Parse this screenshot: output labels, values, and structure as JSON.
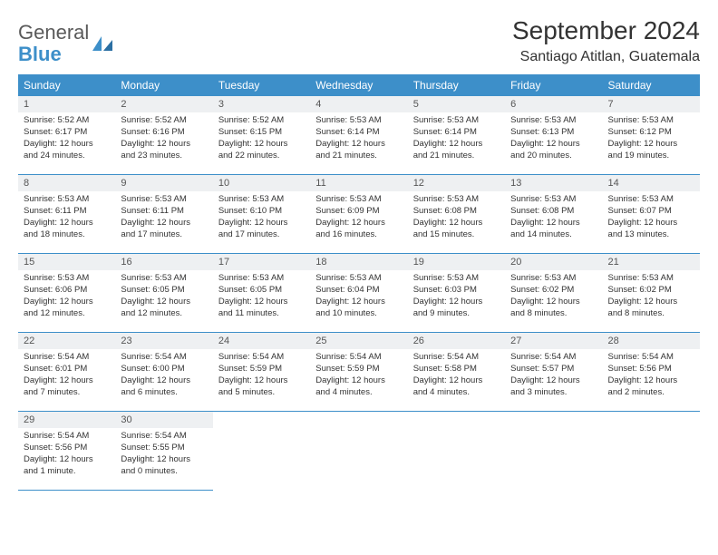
{
  "logo": {
    "text1": "General",
    "text2": "Blue"
  },
  "title": "September 2024",
  "location": "Santiago Atitlan, Guatemala",
  "colors": {
    "header_bg": "#3d8fc9",
    "header_text": "#ffffff",
    "daynum_bg": "#eef0f2",
    "border": "#3d8fc9"
  },
  "weekdays": [
    "Sunday",
    "Monday",
    "Tuesday",
    "Wednesday",
    "Thursday",
    "Friday",
    "Saturday"
  ],
  "days": [
    {
      "n": "1",
      "sr": "Sunrise: 5:52 AM",
      "ss": "Sunset: 6:17 PM",
      "d1": "Daylight: 12 hours",
      "d2": "and 24 minutes."
    },
    {
      "n": "2",
      "sr": "Sunrise: 5:52 AM",
      "ss": "Sunset: 6:16 PM",
      "d1": "Daylight: 12 hours",
      "d2": "and 23 minutes."
    },
    {
      "n": "3",
      "sr": "Sunrise: 5:52 AM",
      "ss": "Sunset: 6:15 PM",
      "d1": "Daylight: 12 hours",
      "d2": "and 22 minutes."
    },
    {
      "n": "4",
      "sr": "Sunrise: 5:53 AM",
      "ss": "Sunset: 6:14 PM",
      "d1": "Daylight: 12 hours",
      "d2": "and 21 minutes."
    },
    {
      "n": "5",
      "sr": "Sunrise: 5:53 AM",
      "ss": "Sunset: 6:14 PM",
      "d1": "Daylight: 12 hours",
      "d2": "and 21 minutes."
    },
    {
      "n": "6",
      "sr": "Sunrise: 5:53 AM",
      "ss": "Sunset: 6:13 PM",
      "d1": "Daylight: 12 hours",
      "d2": "and 20 minutes."
    },
    {
      "n": "7",
      "sr": "Sunrise: 5:53 AM",
      "ss": "Sunset: 6:12 PM",
      "d1": "Daylight: 12 hours",
      "d2": "and 19 minutes."
    },
    {
      "n": "8",
      "sr": "Sunrise: 5:53 AM",
      "ss": "Sunset: 6:11 PM",
      "d1": "Daylight: 12 hours",
      "d2": "and 18 minutes."
    },
    {
      "n": "9",
      "sr": "Sunrise: 5:53 AM",
      "ss": "Sunset: 6:11 PM",
      "d1": "Daylight: 12 hours",
      "d2": "and 17 minutes."
    },
    {
      "n": "10",
      "sr": "Sunrise: 5:53 AM",
      "ss": "Sunset: 6:10 PM",
      "d1": "Daylight: 12 hours",
      "d2": "and 17 minutes."
    },
    {
      "n": "11",
      "sr": "Sunrise: 5:53 AM",
      "ss": "Sunset: 6:09 PM",
      "d1": "Daylight: 12 hours",
      "d2": "and 16 minutes."
    },
    {
      "n": "12",
      "sr": "Sunrise: 5:53 AM",
      "ss": "Sunset: 6:08 PM",
      "d1": "Daylight: 12 hours",
      "d2": "and 15 minutes."
    },
    {
      "n": "13",
      "sr": "Sunrise: 5:53 AM",
      "ss": "Sunset: 6:08 PM",
      "d1": "Daylight: 12 hours",
      "d2": "and 14 minutes."
    },
    {
      "n": "14",
      "sr": "Sunrise: 5:53 AM",
      "ss": "Sunset: 6:07 PM",
      "d1": "Daylight: 12 hours",
      "d2": "and 13 minutes."
    },
    {
      "n": "15",
      "sr": "Sunrise: 5:53 AM",
      "ss": "Sunset: 6:06 PM",
      "d1": "Daylight: 12 hours",
      "d2": "and 12 minutes."
    },
    {
      "n": "16",
      "sr": "Sunrise: 5:53 AM",
      "ss": "Sunset: 6:05 PM",
      "d1": "Daylight: 12 hours",
      "d2": "and 12 minutes."
    },
    {
      "n": "17",
      "sr": "Sunrise: 5:53 AM",
      "ss": "Sunset: 6:05 PM",
      "d1": "Daylight: 12 hours",
      "d2": "and 11 minutes."
    },
    {
      "n": "18",
      "sr": "Sunrise: 5:53 AM",
      "ss": "Sunset: 6:04 PM",
      "d1": "Daylight: 12 hours",
      "d2": "and 10 minutes."
    },
    {
      "n": "19",
      "sr": "Sunrise: 5:53 AM",
      "ss": "Sunset: 6:03 PM",
      "d1": "Daylight: 12 hours",
      "d2": "and 9 minutes."
    },
    {
      "n": "20",
      "sr": "Sunrise: 5:53 AM",
      "ss": "Sunset: 6:02 PM",
      "d1": "Daylight: 12 hours",
      "d2": "and 8 minutes."
    },
    {
      "n": "21",
      "sr": "Sunrise: 5:53 AM",
      "ss": "Sunset: 6:02 PM",
      "d1": "Daylight: 12 hours",
      "d2": "and 8 minutes."
    },
    {
      "n": "22",
      "sr": "Sunrise: 5:54 AM",
      "ss": "Sunset: 6:01 PM",
      "d1": "Daylight: 12 hours",
      "d2": "and 7 minutes."
    },
    {
      "n": "23",
      "sr": "Sunrise: 5:54 AM",
      "ss": "Sunset: 6:00 PM",
      "d1": "Daylight: 12 hours",
      "d2": "and 6 minutes."
    },
    {
      "n": "24",
      "sr": "Sunrise: 5:54 AM",
      "ss": "Sunset: 5:59 PM",
      "d1": "Daylight: 12 hours",
      "d2": "and 5 minutes."
    },
    {
      "n": "25",
      "sr": "Sunrise: 5:54 AM",
      "ss": "Sunset: 5:59 PM",
      "d1": "Daylight: 12 hours",
      "d2": "and 4 minutes."
    },
    {
      "n": "26",
      "sr": "Sunrise: 5:54 AM",
      "ss": "Sunset: 5:58 PM",
      "d1": "Daylight: 12 hours",
      "d2": "and 4 minutes."
    },
    {
      "n": "27",
      "sr": "Sunrise: 5:54 AM",
      "ss": "Sunset: 5:57 PM",
      "d1": "Daylight: 12 hours",
      "d2": "and 3 minutes."
    },
    {
      "n": "28",
      "sr": "Sunrise: 5:54 AM",
      "ss": "Sunset: 5:56 PM",
      "d1": "Daylight: 12 hours",
      "d2": "and 2 minutes."
    },
    {
      "n": "29",
      "sr": "Sunrise: 5:54 AM",
      "ss": "Sunset: 5:56 PM",
      "d1": "Daylight: 12 hours",
      "d2": "and 1 minute."
    },
    {
      "n": "30",
      "sr": "Sunrise: 5:54 AM",
      "ss": "Sunset: 5:55 PM",
      "d1": "Daylight: 12 hours",
      "d2": "and 0 minutes."
    }
  ]
}
